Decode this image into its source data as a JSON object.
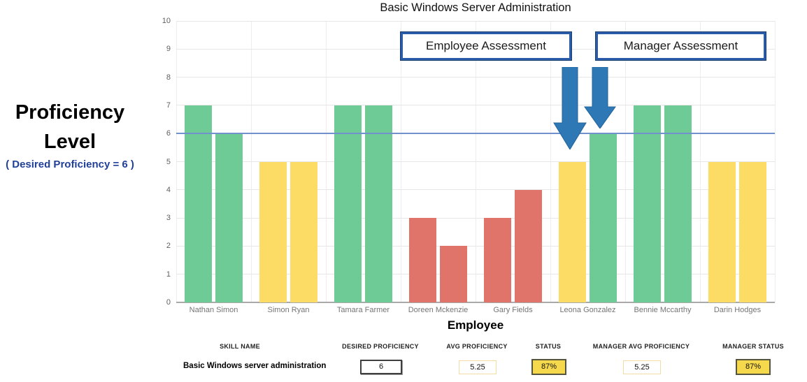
{
  "title": "Basic Windows Server Administration",
  "left_panel": {
    "title_line1": "Proficiency",
    "title_line2": "Level",
    "subtitle": "( Desired Proficiency = 6 )",
    "subtitle_color": "#203f99"
  },
  "annotations": {
    "employee_label": "Employee Assessment",
    "manager_label": "Manager Assessment",
    "box_border_color": "#2a5caa",
    "arrow_color": "#2e78b5",
    "arrow_stroke": "#22639a"
  },
  "chart_data": {
    "type": "bar",
    "title": "Basic Windows Server Administration",
    "xlabel": "Employee",
    "ylabel": "Proficiency Level",
    "ylim": [
      0,
      10
    ],
    "yticks": [
      0,
      1,
      2,
      3,
      4,
      5,
      6,
      7,
      8,
      9,
      10
    ],
    "grid": true,
    "legend_position": "none",
    "categories": [
      "Nathan Simon",
      "Simon Ryan",
      "Tamara Farmer",
      "Doreen Mckenzie",
      "Gary Fields",
      "Leona Gonzalez",
      "Bennie Mccarthy",
      "Darin Hodges"
    ],
    "series": [
      {
        "name": "Employee Assessment",
        "values": [
          7,
          5,
          7,
          3,
          3,
          5,
          7,
          5
        ],
        "colors": [
          "green",
          "yellow",
          "green",
          "red",
          "red",
          "yellow",
          "green",
          "yellow"
        ]
      },
      {
        "name": "Manager Assessment",
        "values": [
          6,
          5,
          7,
          2,
          4,
          6,
          7,
          5
        ],
        "colors": [
          "green",
          "yellow",
          "green",
          "red",
          "red",
          "green",
          "green",
          "yellow"
        ]
      }
    ],
    "reference_line": {
      "label": "Desired Proficiency",
      "value": 6,
      "color": "#7191cc"
    },
    "palette": {
      "green": "#6fcb96",
      "yellow": "#fcdc64",
      "red": "#e0746b"
    }
  },
  "table": {
    "skill": {
      "header": "SKILL NAME",
      "value": "Basic Windows server administration"
    },
    "desired": {
      "header": "DESIRED PROFICIENCY",
      "value": "6"
    },
    "avg": {
      "header": "AVG PROFICIENCY",
      "value": "5.25"
    },
    "status": {
      "header": "STATUS",
      "value": "87%",
      "fill": "#f6d84d"
    },
    "mgr_avg": {
      "header": "MANAGER AVG PROFICIENCY",
      "value": "5.25"
    },
    "mgr_status": {
      "header": "MANAGER STATUS",
      "value": "87%",
      "fill": "#f6d84d"
    }
  }
}
